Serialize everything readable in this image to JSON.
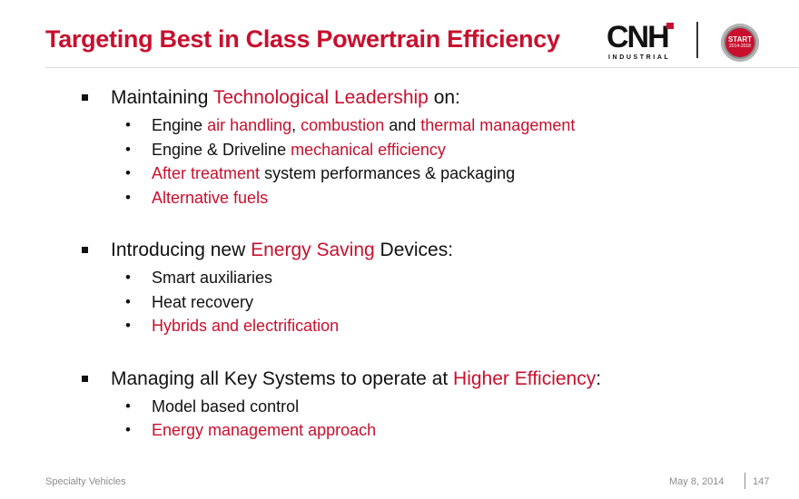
{
  "slide": {
    "title": "Targeting Best in Class Powertrain Efficiency"
  },
  "logo": {
    "main": "CNH",
    "sub": "INDUSTRIAL"
  },
  "badge": {
    "line1": "START",
    "line2": "2014-2018"
  },
  "colors": {
    "accent": "#c8102e",
    "text": "#111111",
    "footer": "#8c8c8c"
  },
  "sections": [
    {
      "main": [
        {
          "t": "Maintaining ",
          "hl": false
        },
        {
          "t": "Technological Leadership",
          "hl": true
        },
        {
          "t": " on:",
          "hl": false
        }
      ],
      "items": [
        [
          {
            "t": "Engine ",
            "hl": false
          },
          {
            "t": "air handling",
            "hl": true
          },
          {
            "t": ", ",
            "hl": false
          },
          {
            "t": "combustion",
            "hl": true
          },
          {
            "t": " and ",
            "hl": false
          },
          {
            "t": "thermal management",
            "hl": true
          }
        ],
        [
          {
            "t": "Engine & Driveline ",
            "hl": false
          },
          {
            "t": "mechanical efficiency",
            "hl": true
          }
        ],
        [
          {
            "t": "After treatment",
            "hl": true
          },
          {
            "t": " system performances & packaging",
            "hl": false
          }
        ],
        [
          {
            "t": "Alternative fuels",
            "hl": true
          }
        ]
      ]
    },
    {
      "main": [
        {
          "t": "Introducing new ",
          "hl": false
        },
        {
          "t": "Energy Saving",
          "hl": true
        },
        {
          "t": " Devices:",
          "hl": false
        }
      ],
      "items": [
        [
          {
            "t": "Smart auxiliaries",
            "hl": false
          }
        ],
        [
          {
            "t": "Heat recovery",
            "hl": false
          }
        ],
        [
          {
            "t": "Hybrids and electrification",
            "hl": true
          }
        ]
      ]
    },
    {
      "main": [
        {
          "t": "Managing all Key Systems to operate at ",
          "hl": false
        },
        {
          "t": "Higher Efficiency",
          "hl": true
        },
        {
          "t": ":",
          "hl": false
        }
      ],
      "items": [
        [
          {
            "t": "Model based control",
            "hl": false
          }
        ],
        [
          {
            "t": "Energy management approach",
            "hl": true
          }
        ]
      ]
    }
  ],
  "footer": {
    "left": "Specialty Vehicles",
    "date": "May 8, 2014",
    "page": "147"
  }
}
